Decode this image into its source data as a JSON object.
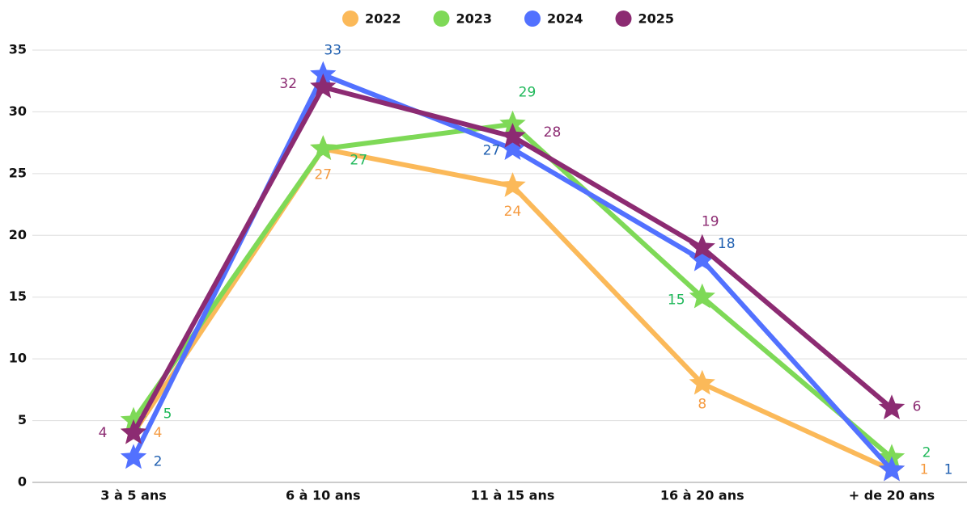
{
  "chart_data": {
    "type": "line",
    "categories": [
      "3 à 5 ans",
      "6 à 10 ans",
      "11 à 15 ans",
      "16 à 20 ans",
      "+ de 20 ans"
    ],
    "series": [
      {
        "name": "2022",
        "color": "#fbb959",
        "label_color": "#f59a3f",
        "values": [
          4,
          27,
          24,
          8,
          1
        ]
      },
      {
        "name": "2023",
        "color": "#7ed957",
        "label_color": "#1fb85a",
        "values": [
          5,
          27,
          29,
          15,
          2
        ]
      },
      {
        "name": "2024",
        "color": "#5271ff",
        "label_color": "#1f5fb0",
        "values": [
          2,
          33,
          27,
          18,
          1
        ]
      },
      {
        "name": "2025",
        "color": "#8c2b72",
        "label_color": "#8c2b72",
        "values": [
          4,
          32,
          28,
          19,
          6
        ]
      }
    ],
    "ylim": [
      0,
      35
    ],
    "yticks": [
      0,
      5,
      10,
      15,
      20,
      25,
      30,
      35
    ],
    "grid": true,
    "legend": "top"
  }
}
